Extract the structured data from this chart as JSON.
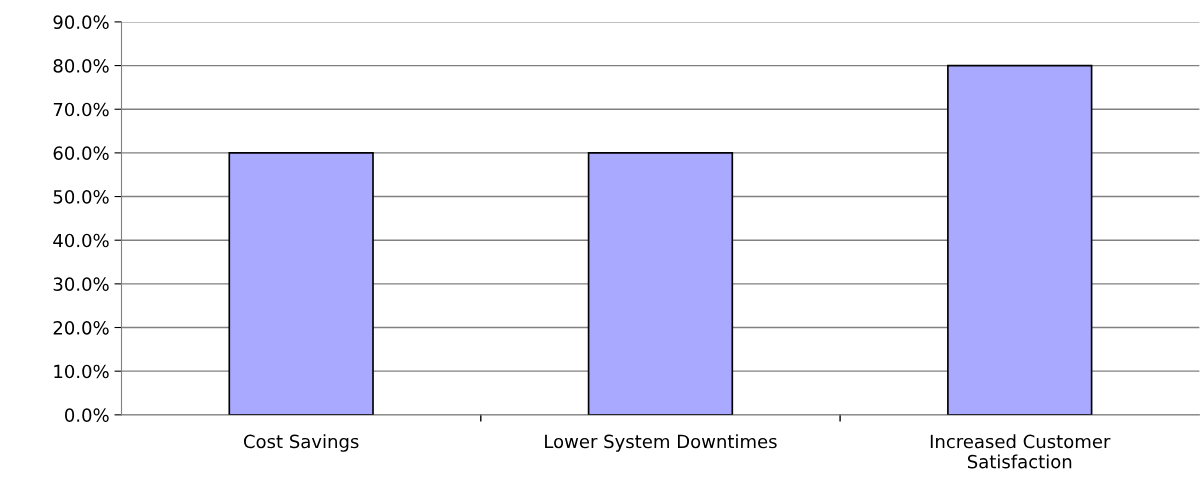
{
  "chart_data": {
    "type": "bar",
    "categories": [
      "Cost Savings",
      "Lower System Downtimes",
      "Increased Customer\nSatisfaction"
    ],
    "values": [
      60,
      60,
      80
    ],
    "color": "#a9aaff",
    "ylim": [
      0,
      90
    ],
    "yticks": [
      {
        "value": 0,
        "label": "0.0%"
      },
      {
        "value": 10,
        "label": "10.0%"
      },
      {
        "value": 20,
        "label": "20.0%"
      },
      {
        "value": 30,
        "label": "30.0%"
      },
      {
        "value": 40,
        "label": "40.0%"
      },
      {
        "value": 50,
        "label": "50.0%"
      },
      {
        "value": 60,
        "label": "60.0%"
      },
      {
        "value": 70,
        "label": "70.0%"
      },
      {
        "value": 80,
        "label": "80.0%"
      },
      {
        "value": 90,
        "label": "90.0%"
      }
    ],
    "grid": "y",
    "legend": false
  }
}
